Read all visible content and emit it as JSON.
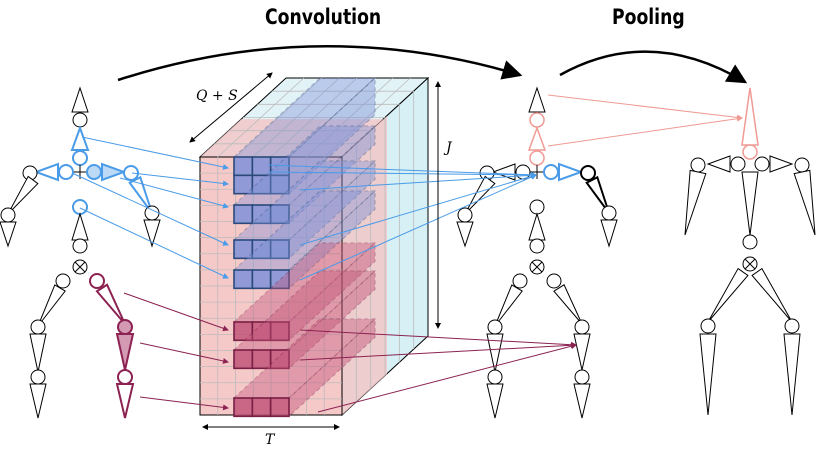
{
  "labels": {
    "convolution": "Convolution",
    "pooling": "Pooling",
    "depth_dim": "Q + S",
    "height_dim": "J",
    "width_dim": "T"
  },
  "colors": {
    "spatial_blue": "#4a9be8",
    "temporal_red": "#8c2252",
    "pooled_pink": "#ef9a94",
    "front_face": "#f6c9c9",
    "side_face": "#d6f0f6",
    "blue_block": "#7f92d8",
    "red_block": "#c2557a"
  }
}
